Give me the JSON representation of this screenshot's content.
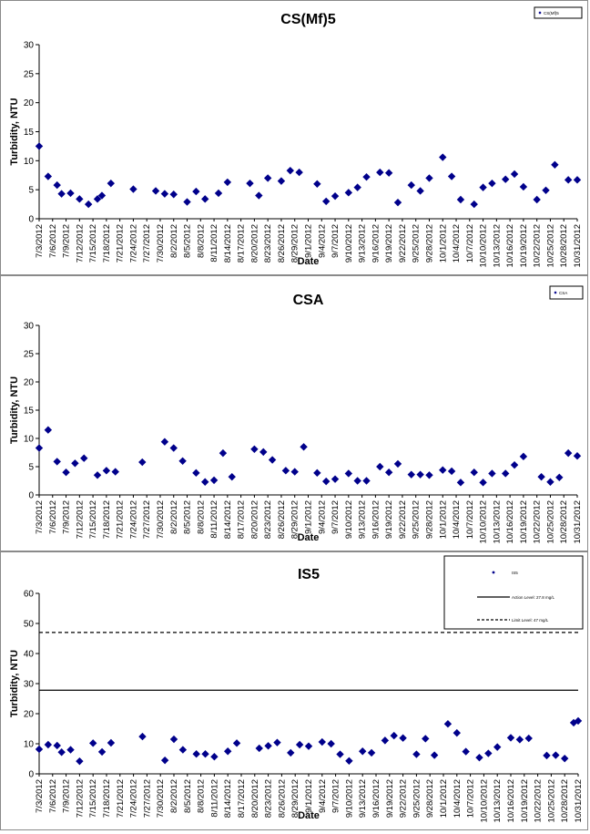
{
  "categories": [
    "7/3/2012",
    "7/6/2012",
    "7/9/2012",
    "7/12/2012",
    "7/15/2012",
    "7/18/2012",
    "7/21/2012",
    "7/24/2012",
    "7/27/2012",
    "7/30/2012",
    "8/2/2012",
    "8/5/2012",
    "8/8/2012",
    "8/11/2012",
    "8/14/2012",
    "8/17/2012",
    "8/20/2012",
    "8/23/2012",
    "8/26/2012",
    "8/29/2012",
    "9/1/2012",
    "9/4/2012",
    "9/7/2012",
    "9/10/2012",
    "9/13/2012",
    "9/16/2012",
    "9/19/2012",
    "9/22/2012",
    "9/25/2012",
    "9/28/2012",
    "10/1/2012",
    "10/4/2012",
    "10/7/2012",
    "10/10/2012",
    "10/13/2012",
    "10/16/2012",
    "10/19/2012",
    "10/22/2012",
    "10/25/2012",
    "10/28/2012",
    "10/31/2012"
  ],
  "chart_data": [
    {
      "type": "scatter",
      "title": "CS(Mf)5",
      "xlabel": "Date",
      "ylabel": "Turbidity, NTU",
      "ylim": [
        0,
        30
      ],
      "yticks": [
        0,
        5,
        10,
        15,
        20,
        25,
        30
      ],
      "x_range": [
        "7/3/2012",
        "10/31/2012"
      ],
      "legend": {
        "position": "top-right",
        "entries": [
          "CS(Mf)5"
        ]
      },
      "series": [
        {
          "name": "CS(Mf)5",
          "marker": "diamond",
          "color": "#00008B",
          "x": [
            "7/3/2012",
            "7/5/2012",
            "7/7/2012",
            "7/8/2012",
            "7/10/2012",
            "7/12/2012",
            "7/14/2012",
            "7/16/2012",
            "7/17/2012",
            "7/19/2012",
            "7/24/2012",
            "7/29/2012",
            "7/31/2012",
            "8/2/2012",
            "8/5/2012",
            "8/7/2012",
            "8/9/2012",
            "8/12/2012",
            "8/14/2012",
            "8/19/2012",
            "8/21/2012",
            "8/23/2012",
            "8/26/2012",
            "8/28/2012",
            "8/30/2012",
            "9/3/2012",
            "9/5/2012",
            "9/7/2012",
            "9/10/2012",
            "9/12/2012",
            "9/14/2012",
            "9/17/2012",
            "9/19/2012",
            "9/21/2012",
            "9/24/2012",
            "9/26/2012",
            "9/28/2012",
            "10/1/2012",
            "10/3/2012",
            "10/5/2012",
            "10/8/2012",
            "10/10/2012",
            "10/12/2012",
            "10/15/2012",
            "10/17/2012",
            "10/19/2012",
            "10/22/2012",
            "10/24/2012",
            "10/26/2012",
            "10/29/2012",
            "10/31/2012"
          ],
          "y": [
            12.5,
            7.3,
            5.8,
            4.3,
            4.4,
            3.4,
            2.5,
            3.4,
            4.0,
            6.1,
            5.1,
            4.8,
            4.3,
            4.2,
            2.9,
            4.7,
            3.4,
            4.4,
            6.3,
            6.1,
            4.0,
            7.0,
            6.5,
            8.3,
            8.0,
            6.0,
            3.0,
            3.9,
            4.5,
            5.4,
            7.2,
            8.0,
            7.9,
            2.8,
            5.8,
            4.8,
            7.0,
            10.6,
            7.3,
            3.3,
            2.5,
            5.4,
            6.1,
            6.8,
            7.7,
            5.5,
            3.3,
            4.9,
            9.3,
            6.7,
            6.7
          ]
        }
      ]
    },
    {
      "type": "scatter",
      "title": "CSA",
      "xlabel": "Date",
      "ylabel": "Turbidity, NTU",
      "ylim": [
        0,
        30
      ],
      "yticks": [
        0,
        5,
        10,
        15,
        20,
        25,
        30
      ],
      "x_range": [
        "7/3/2012",
        "10/31/2012"
      ],
      "legend": {
        "position": "top-right",
        "entries": [
          "CSA"
        ]
      },
      "series": [
        {
          "name": "CSA",
          "marker": "diamond",
          "color": "#00008B",
          "x": [
            "7/3/2012",
            "7/5/2012",
            "7/7/2012",
            "7/9/2012",
            "7/11/2012",
            "7/13/2012",
            "7/16/2012",
            "7/18/2012",
            "7/20/2012",
            "7/26/2012",
            "7/31/2012",
            "8/2/2012",
            "8/4/2012",
            "8/7/2012",
            "8/9/2012",
            "8/11/2012",
            "8/13/2012",
            "8/15/2012",
            "8/20/2012",
            "8/22/2012",
            "8/24/2012",
            "8/27/2012",
            "8/29/2012",
            "8/31/2012",
            "9/3/2012",
            "9/5/2012",
            "9/7/2012",
            "9/10/2012",
            "9/12/2012",
            "9/14/2012",
            "9/17/2012",
            "9/19/2012",
            "9/21/2012",
            "9/24/2012",
            "9/26/2012",
            "9/28/2012",
            "10/1/2012",
            "10/3/2012",
            "10/5/2012",
            "10/8/2012",
            "10/10/2012",
            "10/12/2012",
            "10/15/2012",
            "10/17/2012",
            "10/19/2012",
            "10/23/2012",
            "10/25/2012",
            "10/27/2012",
            "10/29/2012",
            "10/31/2012"
          ],
          "y": [
            8.3,
            11.5,
            5.9,
            4.0,
            5.6,
            6.5,
            3.5,
            4.3,
            4.1,
            5.8,
            9.4,
            8.3,
            6.0,
            3.9,
            2.3,
            2.6,
            7.4,
            3.2,
            8.1,
            7.6,
            6.2,
            4.3,
            4.1,
            8.5,
            3.9,
            2.4,
            2.8,
            3.8,
            2.5,
            2.5,
            5.0,
            4.0,
            5.5,
            3.6,
            3.6,
            3.5,
            4.4,
            4.2,
            2.2,
            4.0,
            2.2,
            3.8,
            3.8,
            5.3,
            6.8,
            3.2,
            2.3,
            3.1,
            7.4,
            6.9
          ]
        }
      ]
    },
    {
      "type": "scatter",
      "title": "IS5",
      "xlabel": "Date",
      "ylabel": "Turbidity, NTU",
      "ylim": [
        0,
        60
      ],
      "yticks": [
        0,
        10,
        20,
        30,
        40,
        50,
        60
      ],
      "x_range": [
        "7/3/2012",
        "10/31/2012"
      ],
      "legend": {
        "position": "top-right",
        "entries": [
          "IS5",
          "Action Level: 27.8 mg/L",
          "Limit Level: 47 mg/L"
        ]
      },
      "reference_lines": [
        {
          "name": "Action Level: 27.8 mg/L",
          "y": 27.8,
          "style": "solid"
        },
        {
          "name": "Limit Level: 47 mg/L",
          "y": 47,
          "style": "dashed"
        }
      ],
      "series": [
        {
          "name": "IS5",
          "marker": "diamond",
          "color": "#00008B",
          "x": [
            "7/3/2012",
            "7/5/2012",
            "7/7/2012",
            "7/8/2012",
            "7/10/2012",
            "7/12/2012",
            "7/15/2012",
            "7/17/2012",
            "7/19/2012",
            "7/26/2012",
            "7/31/2012",
            "8/2/2012",
            "8/4/2012",
            "8/7/2012",
            "8/9/2012",
            "8/11/2012",
            "8/14/2012",
            "8/16/2012",
            "8/21/2012",
            "8/23/2012",
            "8/25/2012",
            "8/28/2012",
            "8/30/2012",
            "9/1/2012",
            "9/4/2012",
            "9/6/2012",
            "9/8/2012",
            "9/10/2012",
            "9/13/2012",
            "9/15/2012",
            "9/18/2012",
            "9/20/2012",
            "9/22/2012",
            "9/25/2012",
            "9/27/2012",
            "9/29/2012",
            "10/2/2012",
            "10/4/2012",
            "10/6/2012",
            "10/9/2012",
            "10/11/2012",
            "10/13/2012",
            "10/16/2012",
            "10/18/2012",
            "10/20/2012",
            "10/24/2012",
            "10/26/2012",
            "10/28/2012",
            "10/30/2012",
            "10/31/2012"
          ],
          "y": [
            8.2,
            9.7,
            9.4,
            7.2,
            8.0,
            4.2,
            10.2,
            7.3,
            10.3,
            12.4,
            4.5,
            11.5,
            8.0,
            6.6,
            6.6,
            5.7,
            7.5,
            10.2,
            8.5,
            9.3,
            10.4,
            7.0,
            9.7,
            9.2,
            10.6,
            10.0,
            6.5,
            4.3,
            7.5,
            7.0,
            11.1,
            12.7,
            11.9,
            6.5,
            11.7,
            6.2,
            16.6,
            13.6,
            7.4,
            5.4,
            6.8,
            8.9,
            12.0,
            11.4,
            11.8,
            6.1,
            6.2,
            5.1,
            17.0,
            17.6
          ]
        }
      ]
    }
  ]
}
